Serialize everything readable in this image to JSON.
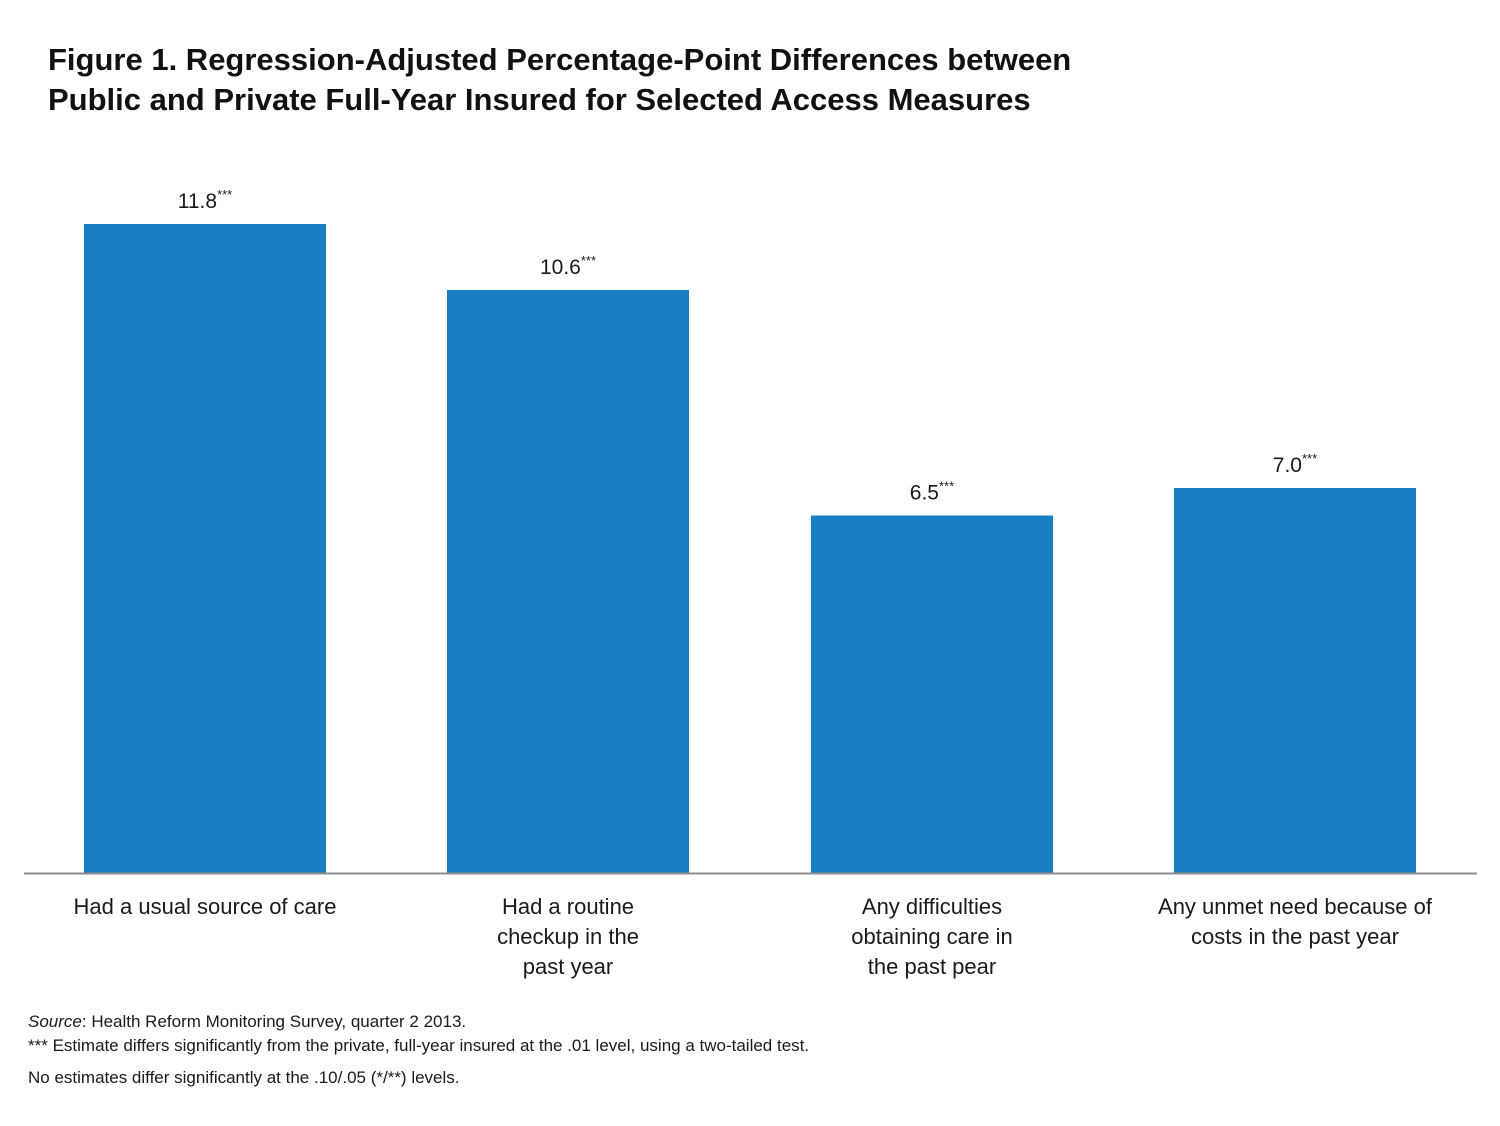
{
  "figure": {
    "title_line1": "Figure 1. Regression-Adjusted Percentage-Point Differences between",
    "title_line2": "Public and Private Full-Year Insured for Selected Access Measures"
  },
  "chart_data": {
    "type": "bar",
    "categories": [
      "Had a usual source of care",
      "Had a routine checkup in the past year",
      "Any difficulties obtaining care in the past pear",
      "Any unmet need because of costs in the past year"
    ],
    "category_lines": [
      [
        "Had a usual source of care"
      ],
      [
        "Had a routine",
        "checkup in the",
        "past year"
      ],
      [
        "Any difficulties",
        "obtaining care in",
        "the past pear"
      ],
      [
        "Any unmet need because of",
        "costs in the past year"
      ]
    ],
    "values": [
      11.8,
      10.6,
      6.5,
      7.0
    ],
    "data_labels": [
      "11.8",
      "10.6",
      "6.5",
      "7.0"
    ],
    "significance": [
      "***",
      "***",
      "***",
      "***"
    ],
    "ylim": [
      0,
      11.8
    ],
    "bar_color": "#167ec1",
    "axis_color": "#8c8c8c",
    "grid": false,
    "legend": "none",
    "xlabel": "",
    "ylabel": ""
  },
  "notes": {
    "source_label": "Source",
    "source_text": ": Health Reform Monitoring Survey, quarter 2 2013.",
    "significance_note": "*** Estimate differs significantly from the private, full-year insured at the .01 level, using a two-tailed test.",
    "no_significance_note": "No estimates differ significantly at the .10/.05 (*/**) levels."
  }
}
